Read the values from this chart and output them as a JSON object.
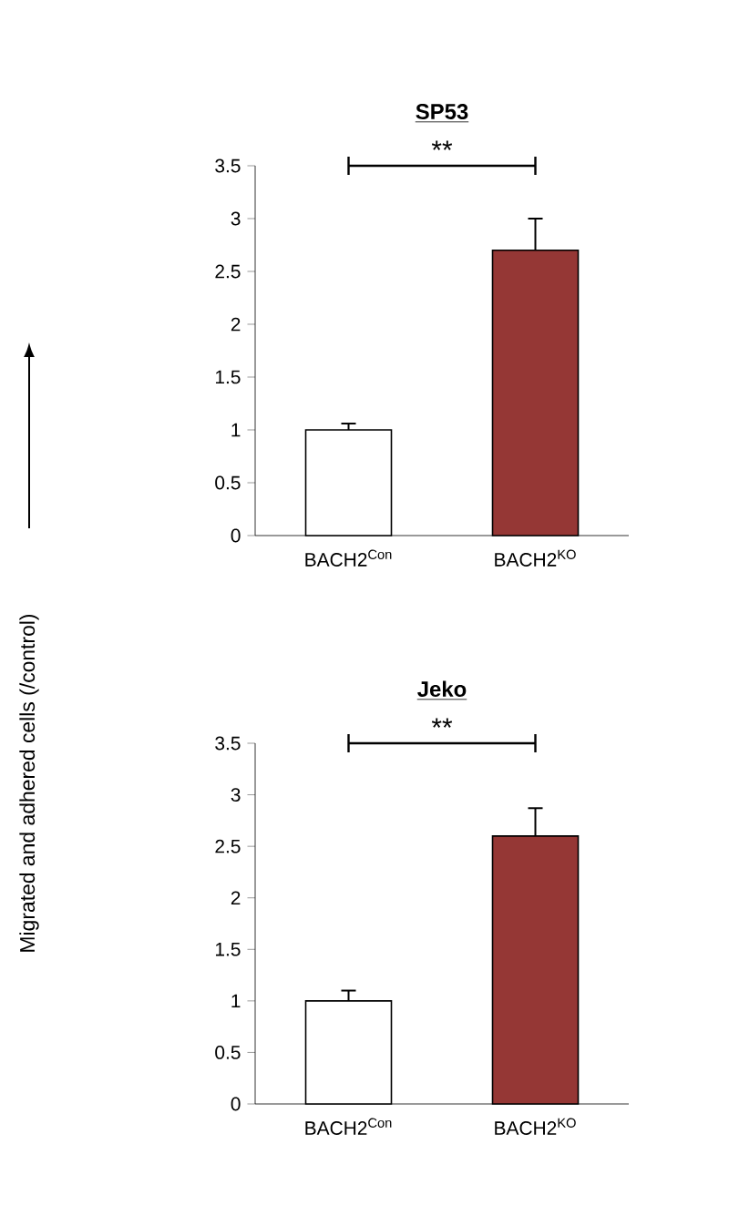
{
  "chart_data": [
    {
      "type": "bar",
      "title": "SP53",
      "ylabel": "Migrated and adhered cells (/control)",
      "categories": [
        "BACH2$^{Con}$",
        "BACH2$^{KO}$"
      ],
      "values": [
        1.0,
        2.7
      ],
      "colors": [
        "#ffffff",
        "#953735"
      ],
      "errors": [
        [
          1.0,
          1.06
        ],
        [
          2.7,
          3.0
        ]
      ],
      "ylim": [
        0,
        3.5
      ],
      "yticks": [
        0,
        0.5,
        1,
        1.5,
        2,
        2.5,
        3,
        3.5
      ],
      "annotations": [
        "**"
      ]
    },
    {
      "type": "bar",
      "title": "Jeko",
      "categories": [
        "BACH2$^{Con}$",
        "BACH2$^{KO}$"
      ],
      "values": [
        1.0,
        2.6
      ],
      "colors": [
        "#ffffff",
        "#953735"
      ],
      "errors": [
        [
          1.0,
          1.1
        ],
        [
          2.6,
          2.87
        ]
      ],
      "ylim": [
        0,
        3.5
      ],
      "yticks": [
        0,
        0.5,
        1,
        1.5,
        2,
        2.5,
        3,
        3.5
      ],
      "annotations": [
        "**"
      ]
    }
  ]
}
